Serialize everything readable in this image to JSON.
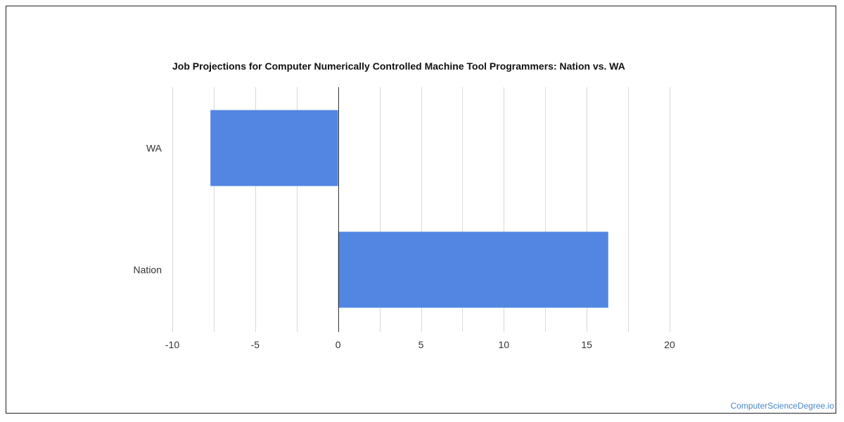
{
  "watermark": "ComputerScienceDegree.io",
  "chart_data": {
    "type": "bar",
    "orientation": "horizontal",
    "title": "Job Projections for Computer Numerically Controlled Machine Tool Programmers: Nation vs. WA",
    "categories": [
      "WA",
      "Nation"
    ],
    "values": [
      -7.7,
      16.3
    ],
    "xlim": [
      -10,
      20
    ],
    "xticks": [
      -10,
      -5,
      0,
      5,
      10,
      15,
      20
    ],
    "xlabel": "",
    "ylabel": "",
    "grid": true,
    "legend": "none",
    "bar_color": "#5286e2"
  }
}
